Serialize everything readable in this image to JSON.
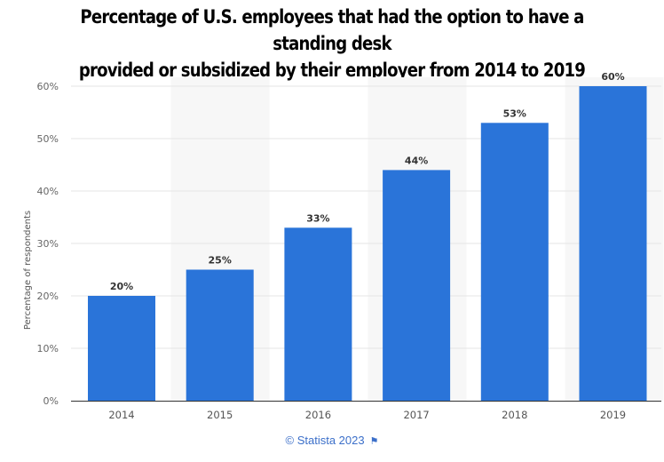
{
  "chart_data": {
    "type": "bar",
    "title": "Percentage of U.S. employees that had the option to have a standing desk provided or subsidized by their employer from 2014 to 2019",
    "title_lines": [
      "Percentage of U.S. employees that had the option to have a standing desk",
      "provided or subsidized by their employer from 2014 to 2019"
    ],
    "categories": [
      "2014",
      "2015",
      "2016",
      "2017",
      "2018",
      "2019"
    ],
    "values": [
      20,
      25,
      33,
      44,
      53,
      60
    ],
    "data_labels": [
      "20%",
      "25%",
      "33%",
      "44%",
      "53%",
      "60%"
    ],
    "xlabel": "",
    "ylabel": "Percentage of respondents",
    "ylim": [
      0,
      60
    ],
    "yticks": [
      0,
      10,
      20,
      30,
      40,
      50,
      60
    ],
    "ytick_labels": [
      "0%",
      "10%",
      "20%",
      "30%",
      "40%",
      "50%",
      "60%"
    ],
    "grid": true,
    "bar_color": "#2a74d9"
  },
  "footer": {
    "source": "© Statista 2023",
    "flag_icon": "flag-icon"
  }
}
